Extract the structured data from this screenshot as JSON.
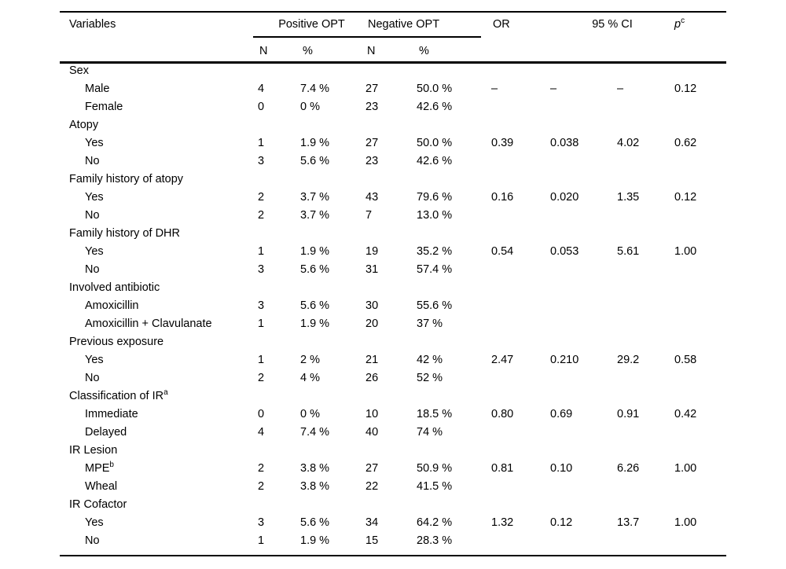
{
  "table": {
    "header": {
      "variables": "Variables",
      "positive_opt": "Positive OPT",
      "negative_opt": "Negative OPT",
      "or": "OR",
      "ci": "95 % CI",
      "p": "p",
      "p_sup": "c",
      "n": "N",
      "pct": "%"
    },
    "rows": [
      {
        "type": "group",
        "label": "Sex"
      },
      {
        "type": "data",
        "label": "Male",
        "pos_n": "4",
        "pos_pct": "7.4 %",
        "neg_n": "27",
        "neg_pct": "50.0 %",
        "or": "–",
        "ci_low": "–",
        "ci_high": "–",
        "p": "0.12"
      },
      {
        "type": "data",
        "label": "Female",
        "pos_n": "0",
        "pos_pct": "0 %",
        "neg_n": "23",
        "neg_pct": "42.6 %",
        "or": "",
        "ci_low": "",
        "ci_high": "",
        "p": ""
      },
      {
        "type": "group",
        "label": "Atopy"
      },
      {
        "type": "data",
        "label": "Yes",
        "pos_n": "1",
        "pos_pct": "1.9 %",
        "neg_n": "27",
        "neg_pct": "50.0 %",
        "or": "0.39",
        "ci_low": "0.038",
        "ci_high": "4.02",
        "p": "0.62"
      },
      {
        "type": "data",
        "label": "No",
        "pos_n": "3",
        "pos_pct": "5.6 %",
        "neg_n": "23",
        "neg_pct": "42.6 %",
        "or": "",
        "ci_low": "",
        "ci_high": "",
        "p": ""
      },
      {
        "type": "group",
        "label": "Family history of atopy"
      },
      {
        "type": "data",
        "label": "Yes",
        "pos_n": "2",
        "pos_pct": "3.7 %",
        "neg_n": "43",
        "neg_pct": "79.6 %",
        "or": "0.16",
        "ci_low": "0.020",
        "ci_high": "1.35",
        "p": "0.12"
      },
      {
        "type": "data",
        "label": "No",
        "pos_n": "2",
        "pos_pct": "3.7 %",
        "neg_n": "7",
        "neg_pct": "13.0 %",
        "or": "",
        "ci_low": "",
        "ci_high": "",
        "p": ""
      },
      {
        "type": "group",
        "label": "Family history of DHR"
      },
      {
        "type": "data",
        "label": "Yes",
        "pos_n": "1",
        "pos_pct": "1.9 %",
        "neg_n": "19",
        "neg_pct": "35.2 %",
        "or": "0.54",
        "ci_low": "0.053",
        "ci_high": "5.61",
        "p": "1.00"
      },
      {
        "type": "data",
        "label": "No",
        "pos_n": "3",
        "pos_pct": "5.6 %",
        "neg_n": "31",
        "neg_pct": "57.4 %",
        "or": "",
        "ci_low": "",
        "ci_high": "",
        "p": ""
      },
      {
        "type": "group",
        "label": "Involved antibiotic"
      },
      {
        "type": "data",
        "label": "Amoxicillin",
        "pos_n": "3",
        "pos_pct": "5.6 %",
        "neg_n": "30",
        "neg_pct": "55.6 %",
        "or": "",
        "ci_low": "",
        "ci_high": "",
        "p": ""
      },
      {
        "type": "data",
        "label": "Amoxicillin + Clavulanate",
        "pos_n": "1",
        "pos_pct": "1.9 %",
        "neg_n": "20",
        "neg_pct": "37 %",
        "or": "",
        "ci_low": "",
        "ci_high": "",
        "p": ""
      },
      {
        "type": "group",
        "label": "Previous exposure"
      },
      {
        "type": "data",
        "label": "Yes",
        "pos_n": "1",
        "pos_pct": "2 %",
        "neg_n": "21",
        "neg_pct": "42 %",
        "or": "2.47",
        "ci_low": "0.210",
        "ci_high": "29.2",
        "p": "0.58"
      },
      {
        "type": "data",
        "label": "No",
        "pos_n": "2",
        "pos_pct": "4 %",
        "neg_n": "26",
        "neg_pct": "52 %",
        "or": "",
        "ci_low": "",
        "ci_high": "",
        "p": ""
      },
      {
        "type": "group",
        "label": "Classification of IR",
        "sup": "a"
      },
      {
        "type": "data",
        "label": "Immediate",
        "pos_n": "0",
        "pos_pct": "0 %",
        "neg_n": "10",
        "neg_pct": "18.5 %",
        "or": "0.80",
        "ci_low": "0.69",
        "ci_high": "0.91",
        "p": "0.42"
      },
      {
        "type": "data",
        "label": "Delayed",
        "pos_n": "4",
        "pos_pct": "7.4 %",
        "neg_n": "40",
        "neg_pct": "74 %",
        "or": "",
        "ci_low": "",
        "ci_high": "",
        "p": ""
      },
      {
        "type": "group",
        "label": "IR Lesion"
      },
      {
        "type": "data",
        "label": "MPE",
        "sup": "b",
        "pos_n": "2",
        "pos_pct": "3.8 %",
        "neg_n": "27",
        "neg_pct": "50.9 %",
        "or": "0.81",
        "ci_low": "0.10",
        "ci_high": "6.26",
        "p": "1.00"
      },
      {
        "type": "data",
        "label": "Wheal",
        "pos_n": "2",
        "pos_pct": "3.8 %",
        "neg_n": "22",
        "neg_pct": "41.5 %",
        "or": "",
        "ci_low": "",
        "ci_high": "",
        "p": ""
      },
      {
        "type": "group",
        "label": "IR Cofactor"
      },
      {
        "type": "data",
        "label": "Yes",
        "pos_n": "3",
        "pos_pct": "5.6 %",
        "neg_n": "34",
        "neg_pct": "64.2 %",
        "or": "1.32",
        "ci_low": "0.12",
        "ci_high": "13.7",
        "p": "1.00"
      },
      {
        "type": "data",
        "label": "No",
        "pos_n": "1",
        "pos_pct": "1.9 %",
        "neg_n": "15",
        "neg_pct": "28.3 %",
        "or": "",
        "ci_low": "",
        "ci_high": "",
        "p": ""
      }
    ]
  }
}
